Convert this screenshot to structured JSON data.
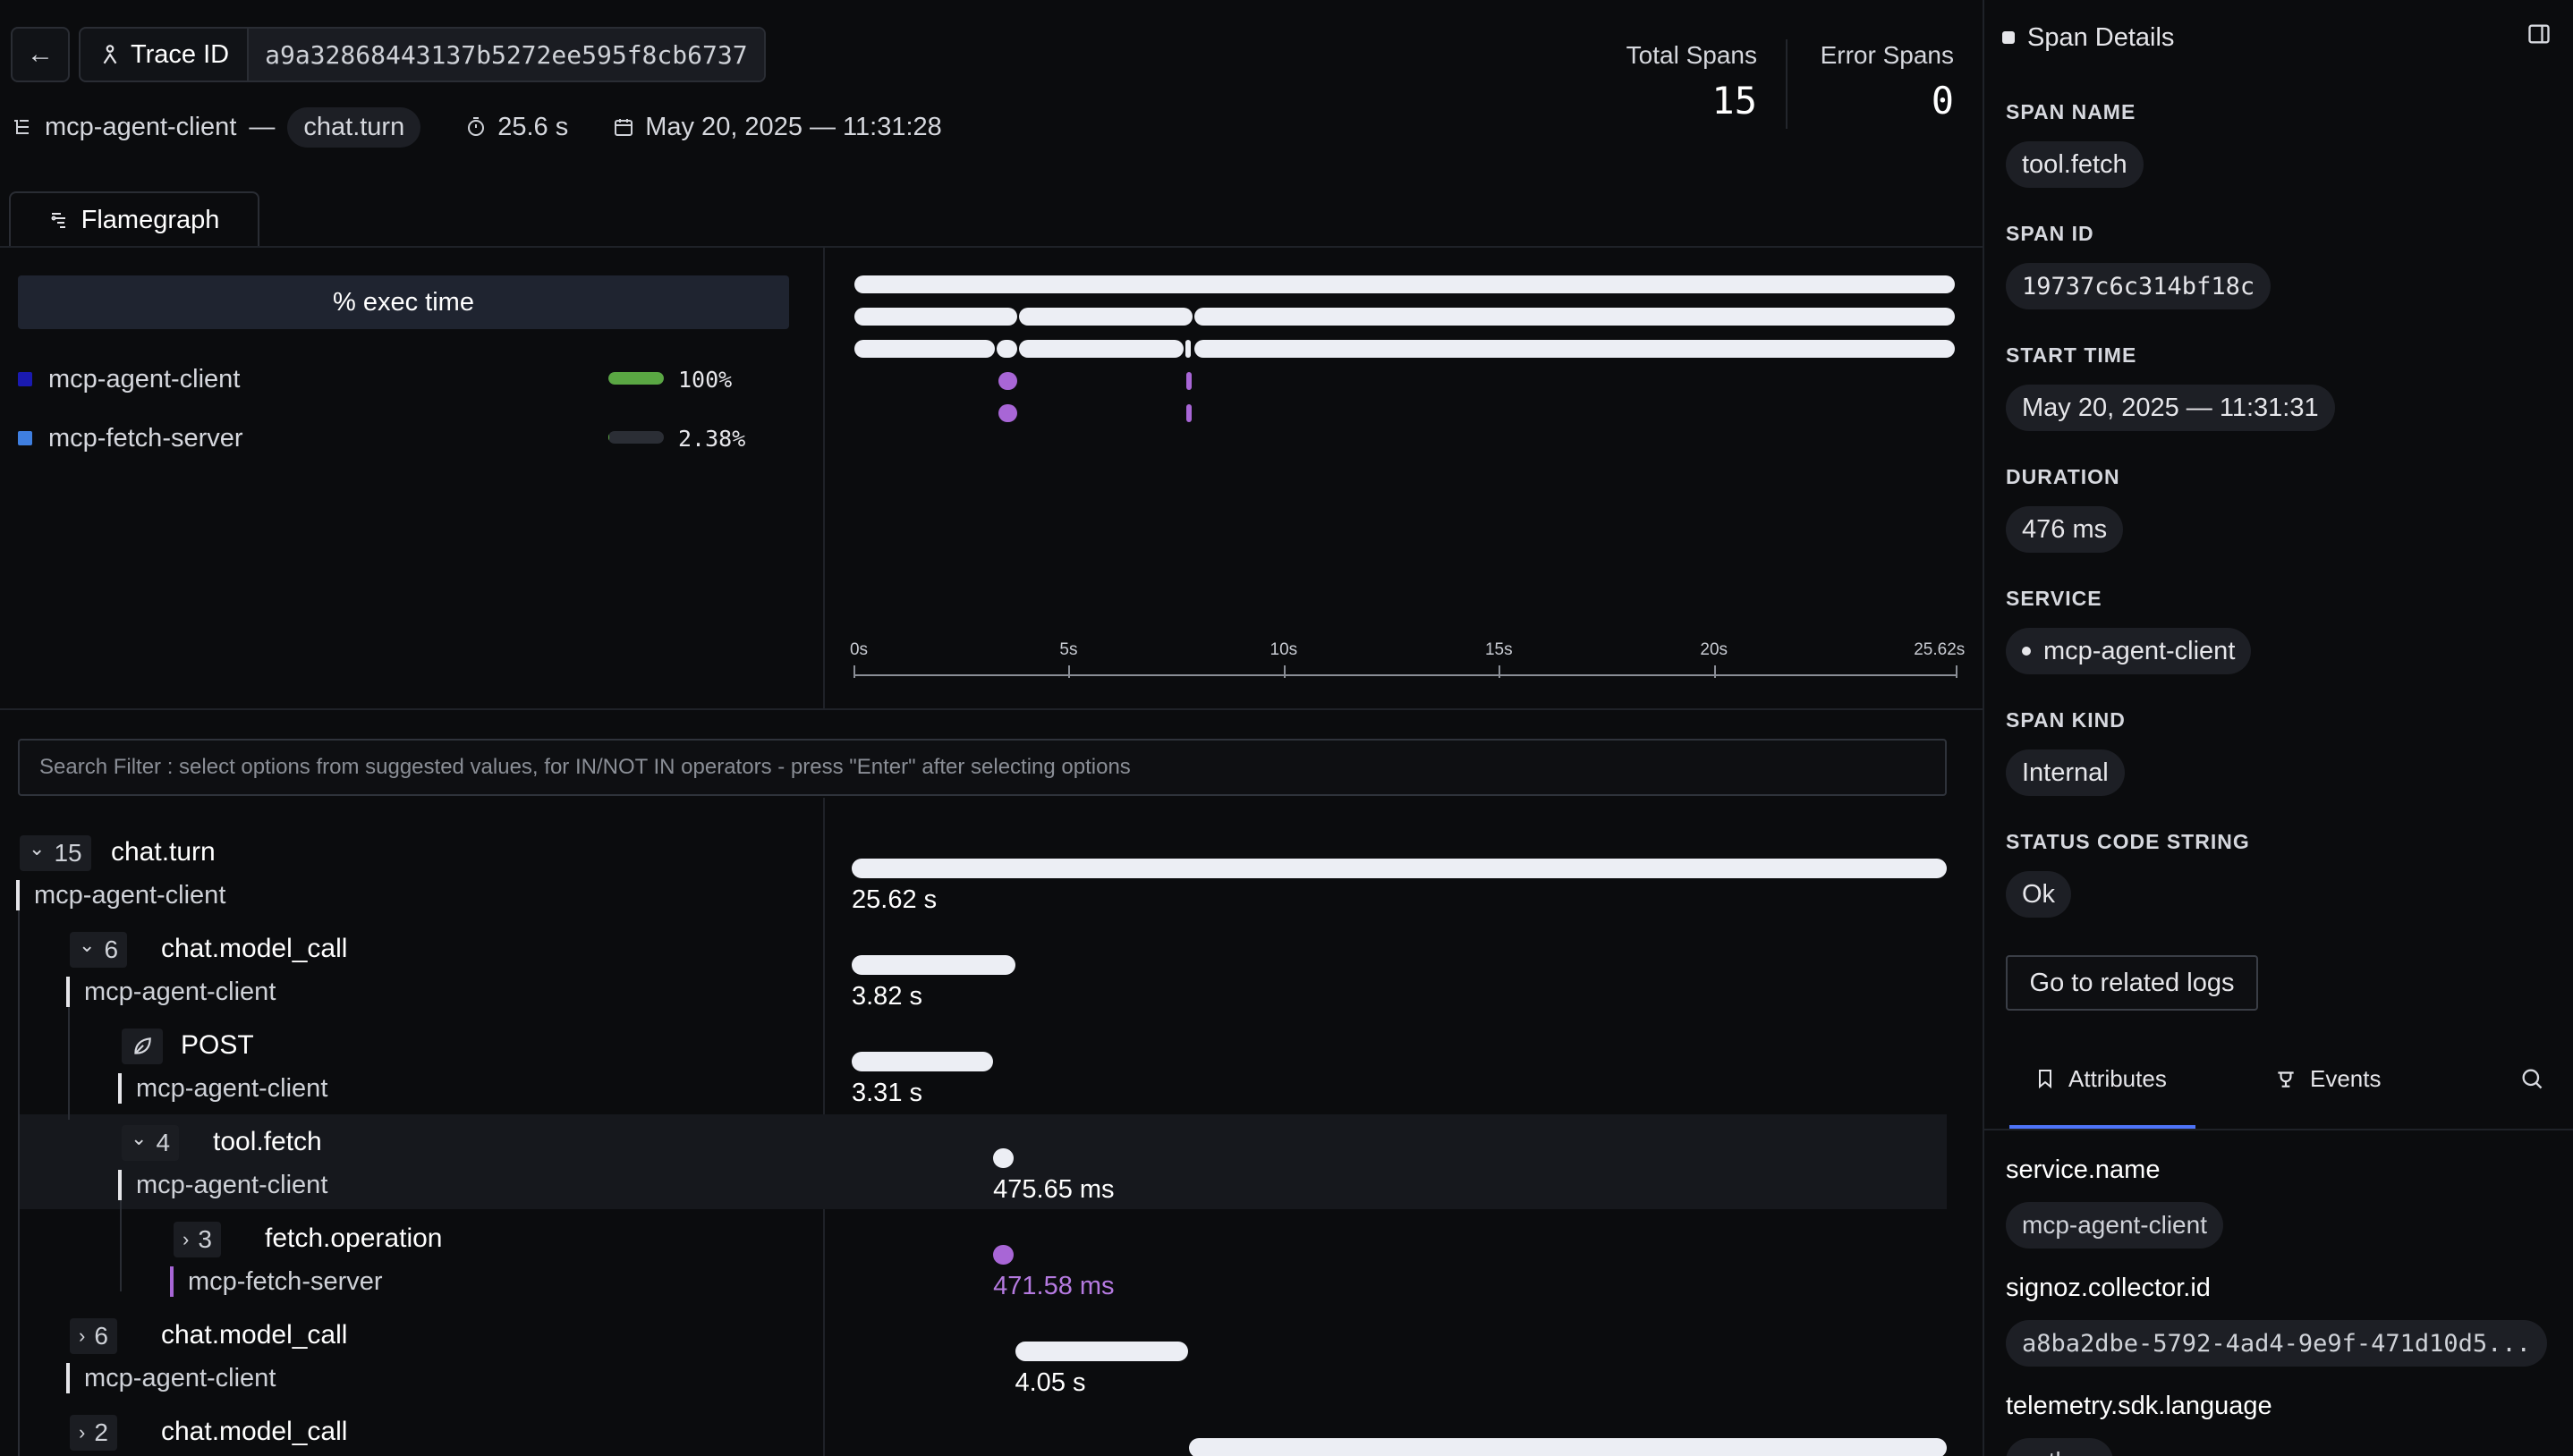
{
  "header": {
    "back_icon": "arrow-left-icon",
    "trace_label": "Trace ID",
    "trace_id": "a9a32868443137b5272ee595f8cb6737",
    "service": "mcp-agent-client",
    "separator": "—",
    "root_span": "chat.turn",
    "duration": "25.6 s",
    "datetime": "May 20, 2025 — 11:31:28",
    "total_spans_label": "Total Spans",
    "total_spans": "15",
    "error_spans_label": "Error Spans",
    "error_spans": "0"
  },
  "tabs": {
    "flamegraph": "Flamegraph"
  },
  "exec_time": {
    "header": "% exec time",
    "services": [
      {
        "name": "mcp-agent-client",
        "pct": "100%",
        "fraction": 1.0,
        "color": "#1a1ab0"
      },
      {
        "name": "mcp-fetch-server",
        "pct": "2.38%",
        "fraction": 0.0238,
        "color": "#3f7fe0"
      }
    ]
  },
  "flamegraph": {
    "axis_ticks": [
      "0s",
      "5s",
      "10s",
      "15s",
      "20s",
      "25.62s"
    ],
    "total_seconds": 25.62,
    "bars": [
      {
        "level": 0,
        "start": 0,
        "end": 25.62,
        "color": "#eceef4"
      },
      {
        "level": 1,
        "start": 0,
        "end": 3.82,
        "color": "#eceef4"
      },
      {
        "level": 1,
        "start": 3.82,
        "end": 7.9,
        "color": "#eceef4"
      },
      {
        "level": 1,
        "start": 7.9,
        "end": 25.62,
        "color": "#eceef4"
      },
      {
        "level": 2,
        "start": 0,
        "end": 3.31,
        "color": "#eceef4"
      },
      {
        "level": 2,
        "start": 3.31,
        "end": 3.82,
        "color": "#eceef4"
      },
      {
        "level": 2,
        "start": 3.82,
        "end": 7.7,
        "color": "#eceef4"
      },
      {
        "level": 2,
        "start": 7.7,
        "end": 7.8,
        "color": "#eceef4"
      },
      {
        "level": 2,
        "start": 7.9,
        "end": 25.62,
        "color": "#eceef4"
      },
      {
        "level": 3,
        "start": 3.35,
        "end": 3.82,
        "color": "#a866d6"
      },
      {
        "level": 3,
        "start": 7.72,
        "end": 7.78,
        "color": "#a866d6"
      },
      {
        "level": 4,
        "start": 3.35,
        "end": 3.82,
        "color": "#a866d6"
      },
      {
        "level": 4,
        "start": 7.72,
        "end": 7.78,
        "color": "#a866d6"
      }
    ]
  },
  "search": {
    "placeholder": "Search Filter : select options from suggested values, for IN/NOT IN operators - press \"Enter\" after selecting options"
  },
  "spans": [
    {
      "count": "15",
      "name": "chat.turn",
      "service": "mcp-agent-client",
      "duration": "25.62 s",
      "start": 0,
      "end": 25.62,
      "depth": 0,
      "expanded": true,
      "svc_color": "#e6e6ea",
      "bar_color": "#eceef4",
      "dur_color": "#ffffff"
    },
    {
      "count": "6",
      "name": "chat.model_call",
      "service": "mcp-agent-client",
      "duration": "3.82 s",
      "start": 0,
      "end": 3.82,
      "depth": 1,
      "expanded": true,
      "svc_color": "#e6e6ea",
      "bar_color": "#eceef4",
      "dur_color": "#ffffff"
    },
    {
      "count": "",
      "name": "POST",
      "service": "mcp-agent-client",
      "duration": "3.31 s",
      "start": 0,
      "end": 3.31,
      "depth": 2,
      "expanded": null,
      "icon": "leaf-icon",
      "svc_color": "#e6e6ea",
      "bar_color": "#eceef4",
      "dur_color": "#ffffff"
    },
    {
      "count": "4",
      "name": "tool.fetch",
      "service": "mcp-agent-client",
      "duration": "475.65 ms",
      "start": 3.31,
      "end": 3.79,
      "depth": 2,
      "expanded": true,
      "selected": true,
      "svc_color": "#e6e6ea",
      "bar_color": "#eceef4",
      "dur_color": "#ffffff"
    },
    {
      "count": "3",
      "name": "fetch.operation",
      "service": "mcp-fetch-server",
      "duration": "471.58 ms",
      "start": 3.31,
      "end": 3.78,
      "depth": 3,
      "expanded": false,
      "svc_color": "#a866d6",
      "bar_color": "#a866d6",
      "dur_color": "#b57ae0"
    },
    {
      "count": "6",
      "name": "chat.model_call",
      "service": "mcp-agent-client",
      "duration": "4.05 s",
      "start": 3.82,
      "end": 7.87,
      "depth": 1,
      "expanded": false,
      "svc_color": "#e6e6ea",
      "bar_color": "#eceef4",
      "dur_color": "#ffffff"
    },
    {
      "count": "2",
      "name": "chat.model_call",
      "service": "",
      "duration": "",
      "start": 7.9,
      "end": 25.62,
      "depth": 1,
      "expanded": false,
      "svc_color": "#e6e6ea",
      "bar_color": "#eceef4",
      "dur_color": "#ffffff"
    }
  ],
  "details": {
    "title": "Span Details",
    "span_name_label": "SPAN NAME",
    "span_name": "tool.fetch",
    "span_id_label": "SPAN ID",
    "span_id": "19737c6c314bf18c",
    "start_time_label": "START TIME",
    "start_time": "May 20, 2025 — 11:31:31",
    "duration_label": "DURATION",
    "duration": "476 ms",
    "service_label": "SERVICE",
    "service": "mcp-agent-client",
    "span_kind_label": "SPAN KIND",
    "span_kind": "Internal",
    "status_label": "STATUS CODE STRING",
    "status": "Ok",
    "logs_button": "Go to related logs",
    "tab_attributes": "Attributes",
    "tab_events": "Events",
    "attributes": [
      {
        "key": "service.name",
        "value": "mcp-agent-client"
      },
      {
        "key": "signoz.collector.id",
        "value": "a8ba2dbe-5792-4ad4-9e9f-471d10d5..."
      },
      {
        "key": "telemetry.sdk.language",
        "value": "python"
      }
    ]
  }
}
